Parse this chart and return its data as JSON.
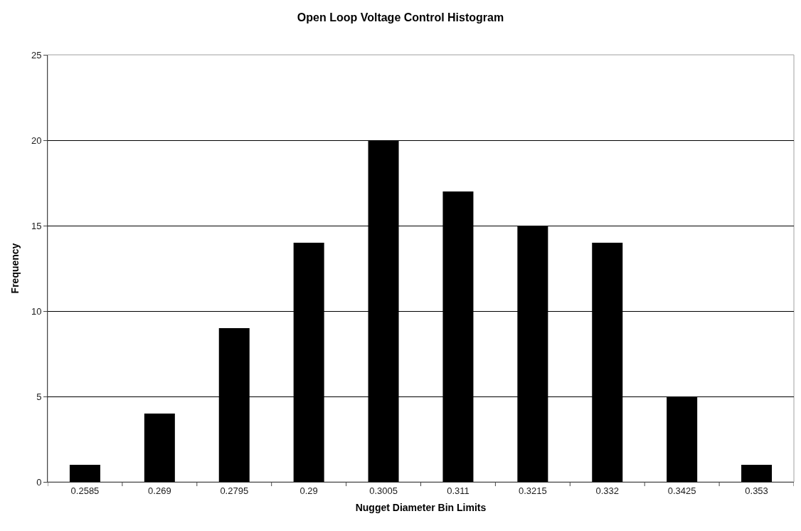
{
  "chart_data": {
    "type": "bar",
    "title": "Open Loop Voltage Control Histogram",
    "xlabel": "Nugget Diameter Bin Limits",
    "ylabel": "Frequency",
    "categories": [
      "0.2585",
      "0.269",
      "0.2795",
      "0.29",
      "0.3005",
      "0.311",
      "0.3215",
      "0.332",
      "0.3425",
      "0.353"
    ],
    "values": [
      1,
      4,
      9,
      14,
      20,
      17,
      15,
      14,
      5,
      1
    ],
    "color": "#000000",
    "ylim": [
      0,
      25
    ],
    "yticks": [
      0,
      5,
      10,
      15,
      20,
      25
    ],
    "grid": "y"
  }
}
